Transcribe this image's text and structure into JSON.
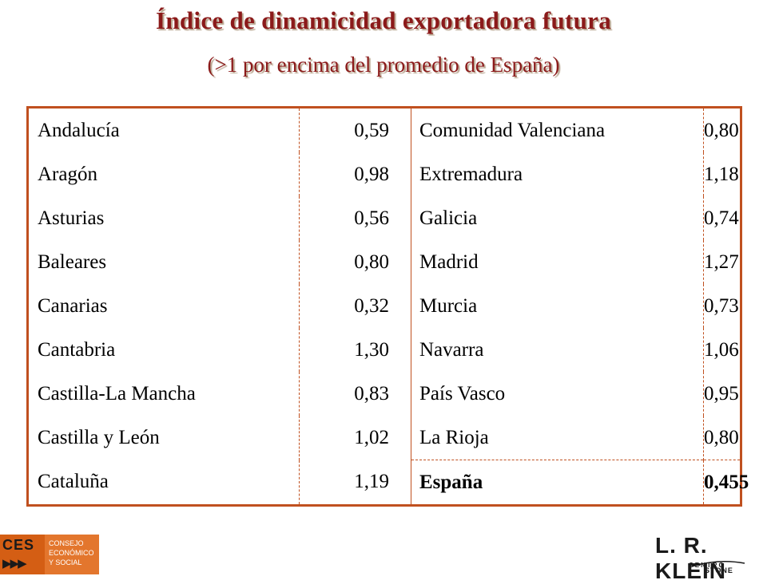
{
  "header": {
    "title": "Índice de dinamicidad exportadora futura",
    "subtitle": "(>1 por encima del promedio de España)"
  },
  "table": {
    "rows": [
      {
        "left_region": "Andalucía",
        "left_value": "0,59",
        "right_region": "Comunidad Valenciana",
        "right_value": "0,80"
      },
      {
        "left_region": "Aragón",
        "left_value": "0,98",
        "right_region": "Extremadura",
        "right_value": "1,18"
      },
      {
        "left_region": "Asturias",
        "left_value": "0,56",
        "right_region": "Galicia",
        "right_value": "0,74"
      },
      {
        "left_region": "Baleares",
        "left_value": "0,80",
        "right_region": "Madrid",
        "right_value": "1,27"
      },
      {
        "left_region": "Canarias",
        "left_value": "0,32",
        "right_region": "Murcia",
        "right_value": "0,73"
      },
      {
        "left_region": "Cantabria",
        "left_value": "1,30",
        "right_region": "Navarra",
        "right_value": "1,06"
      },
      {
        "left_region": "Castilla-La Mancha",
        "left_value": "0,83",
        "right_region": "País Vasco",
        "right_value": "0,95"
      },
      {
        "left_region": "Castilla y León",
        "left_value": "1,02",
        "right_region": "La Rioja",
        "right_value": "0,80"
      },
      {
        "left_region": "Cataluña",
        "left_value": "1,19",
        "right_region": "España",
        "right_value": "0,455"
      }
    ]
  },
  "logos": {
    "ces": {
      "letters": "CES",
      "line1": "CONSEJO",
      "line2": "ECONÓMICO",
      "line3": "Y SOCIAL",
      "color": "#e3762d"
    },
    "klein": {
      "name": "L. R. KLEIN",
      "centro": "CENTRO",
      "stone": "STONE"
    }
  },
  "colors": {
    "title": "#8b1a1a",
    "table_border": "#c0501f"
  }
}
